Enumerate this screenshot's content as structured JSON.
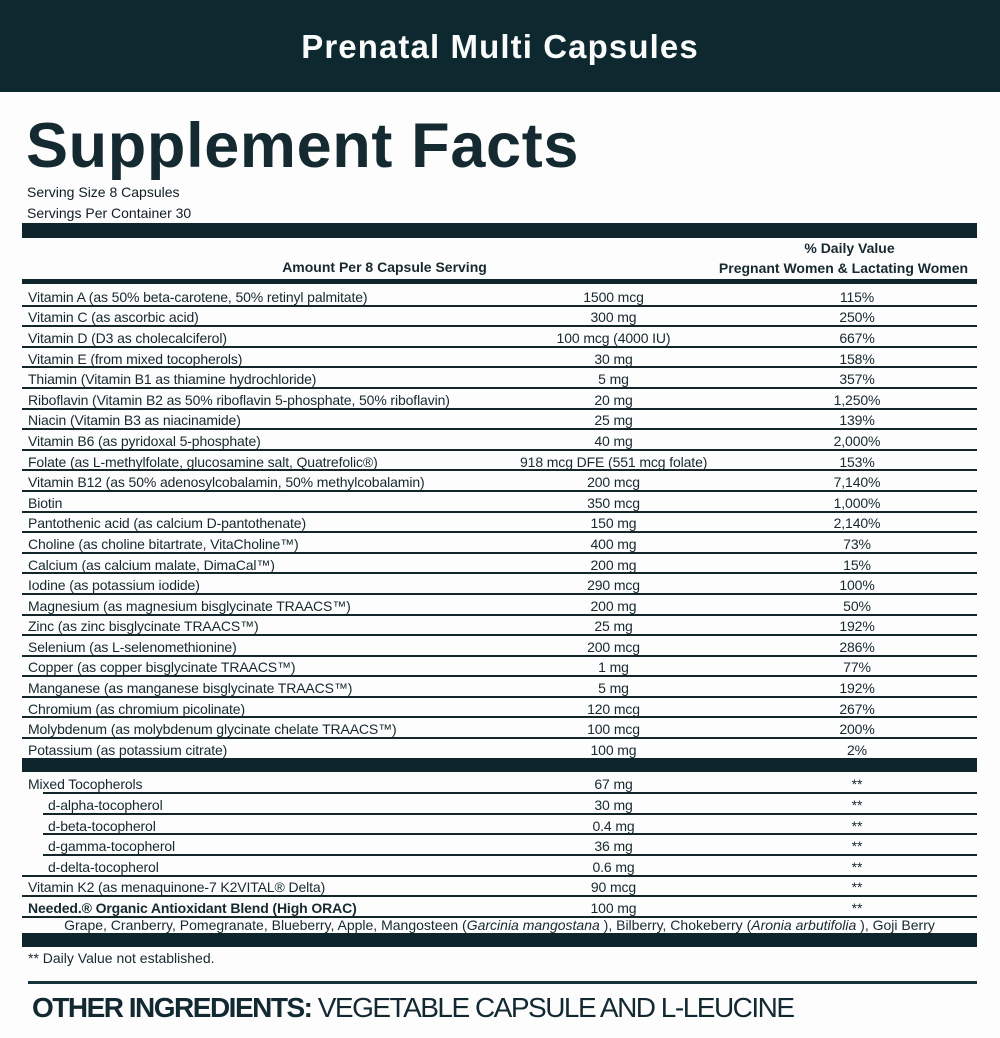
{
  "header": {
    "product_name": "Prenatal Multi Capsules"
  },
  "colors": {
    "banner_bg": "#0d282e",
    "ink": "#16292e",
    "rule": "#0e262b",
    "page_bg": "#fdfdfd"
  },
  "label": {
    "title": "Supplement Facts",
    "serving_size": "Serving Size 8 Capsules",
    "servings_per_container": "Servings Per Container 30"
  },
  "table": {
    "amount_header": "Amount Per 8 Capsule Serving",
    "dv_header_line1": "% Daily Value",
    "dv_header_line2": "Pregnant Women & Lactating Women",
    "rows": [
      {
        "name": "Vitamin A (as 50% beta-carotene, 50% retinyl palmitate)",
        "amount": "1500 mcg",
        "dv": "115%",
        "sep": "full"
      },
      {
        "name": "Vitamin C (as ascorbic acid)",
        "amount": "300 mg",
        "dv": "250%",
        "sep": "full"
      },
      {
        "name": "Vitamin D (D3 as cholecalciferol)",
        "amount": "100 mcg (4000 IU)",
        "dv": "667%",
        "sep": "full"
      },
      {
        "name": "Vitamin E (from mixed tocopherols)",
        "amount": "30 mg",
        "dv": "158%",
        "sep": "full"
      },
      {
        "name": "Thiamin (Vitamin B1 as thiamine hydrochloride)",
        "amount": "5 mg",
        "dv": "357%",
        "sep": "full"
      },
      {
        "name": "Riboflavin (Vitamin B2 as 50% riboflavin 5-phosphate, 50% riboflavin)",
        "amount": "20 mg",
        "dv": "1,250%",
        "sep": "full"
      },
      {
        "name": "Niacin (Vitamin B3 as niacinamide)",
        "amount": "25 mg",
        "dv": "139%",
        "sep": "full"
      },
      {
        "name": "Vitamin B6 (as pyridoxal 5-phosphate)",
        "amount": "40 mg",
        "dv": "2,000%",
        "sep": "full"
      },
      {
        "name": "Folate (as L-methylfolate, glucosamine salt, Quatrefolic®)",
        "amount": "918 mcg DFE (551 mcg folate)",
        "dv": "153%",
        "sep": "full"
      },
      {
        "name": "Vitamin B12 (as 50% adenosylcobalamin, 50% methylcobalamin)",
        "amount": "200 mcg",
        "dv": "7,140%",
        "sep": "full"
      },
      {
        "name": "Biotin",
        "amount": "350 mcg",
        "dv": "1,000%",
        "sep": "full"
      },
      {
        "name": "Pantothenic acid (as calcium D-pantothenate)",
        "amount": "150 mg",
        "dv": "2,140%",
        "sep": "full"
      },
      {
        "name": "Choline (as choline bitartrate, VitaCholine™)",
        "amount": "400 mg",
        "dv": "73%",
        "sep": "full"
      },
      {
        "name": "Calcium (as calcium malate, DimaCal™)",
        "amount": "200 mg",
        "dv": "15%",
        "sep": "full"
      },
      {
        "name": "Iodine (as potassium iodide)",
        "amount": "290 mcg",
        "dv": "100%",
        "sep": "full"
      },
      {
        "name": "Magnesium (as magnesium bisglycinate TRAACS™)",
        "amount": "200 mg",
        "dv": "50%",
        "sep": "full"
      },
      {
        "name": "Zinc (as zinc bisglycinate TRAACS™)",
        "amount": "25 mg",
        "dv": "192%",
        "sep": "full"
      },
      {
        "name": "Selenium (as L-selenomethionine)",
        "amount": "200 mcg",
        "dv": "286%",
        "sep": "full"
      },
      {
        "name": "Copper (as copper bisglycinate TRAACS™)",
        "amount": "1 mg",
        "dv": "77%",
        "sep": "full"
      },
      {
        "name": "Manganese (as manganese bisglycinate TRAACS™)",
        "amount": "5 mg",
        "dv": "192%",
        "sep": "full"
      },
      {
        "name": "Chromium (as chromium picolinate)",
        "amount": "120 mcg",
        "dv": "267%",
        "sep": "full"
      },
      {
        "name": "Molybdenum (as molybdenum glycinate chelate TRAACS™)",
        "amount": "100 mcg",
        "dv": "200%",
        "sep": "full"
      },
      {
        "name": "Potassium (as potassium citrate)",
        "amount": "100 mg",
        "dv": "2%",
        "sep": "none"
      }
    ],
    "rows2": [
      {
        "name": "Mixed Tocopherols",
        "amount": "67 mg",
        "dv": "**",
        "sep": "indent"
      },
      {
        "name": "d-alpha-tocopherol",
        "amount": "30 mg",
        "dv": "**",
        "indent": true,
        "sep": "indent"
      },
      {
        "name": "d-beta-tocopherol",
        "amount": "0.4 mg",
        "dv": "**",
        "indent": true,
        "sep": "indent"
      },
      {
        "name": "d-gamma-tocopherol",
        "amount": "36 mg",
        "dv": "**",
        "indent": true,
        "sep": "indent"
      },
      {
        "name": "d-delta-tocopherol",
        "amount": "0.6 mg",
        "dv": "**",
        "indent": true,
        "sep": "full"
      },
      {
        "name": "Vitamin K2 (as menaquinone-7 K2VITAL® Delta)",
        "amount": "90 mcg",
        "dv": "**",
        "sep": "full"
      },
      {
        "name": "Needed.® Organic Antioxidant Blend (High ORAC)",
        "amount": "100 mg",
        "dv": "**",
        "bold": true,
        "sep": "full"
      }
    ],
    "blend_note": {
      "parts": [
        {
          "t": "Grape, Cranberry, Pomegranate, Blueberry, Apple, Mangosteen ("
        },
        {
          "t": "Garcinia mangostana",
          "i": true
        },
        {
          "t": " ), Bilberry, Chokeberry ("
        },
        {
          "t": "Aronia arbutifolia",
          "i": true
        },
        {
          "t": " ), Goji Berry"
        }
      ]
    }
  },
  "footnotes": {
    "dv_note": "** Daily Value not established."
  },
  "other_ingredients": {
    "label": "OTHER INGREDIENTS:",
    "value": " VEGETABLE CAPSULE AND L-LEUCINE"
  }
}
